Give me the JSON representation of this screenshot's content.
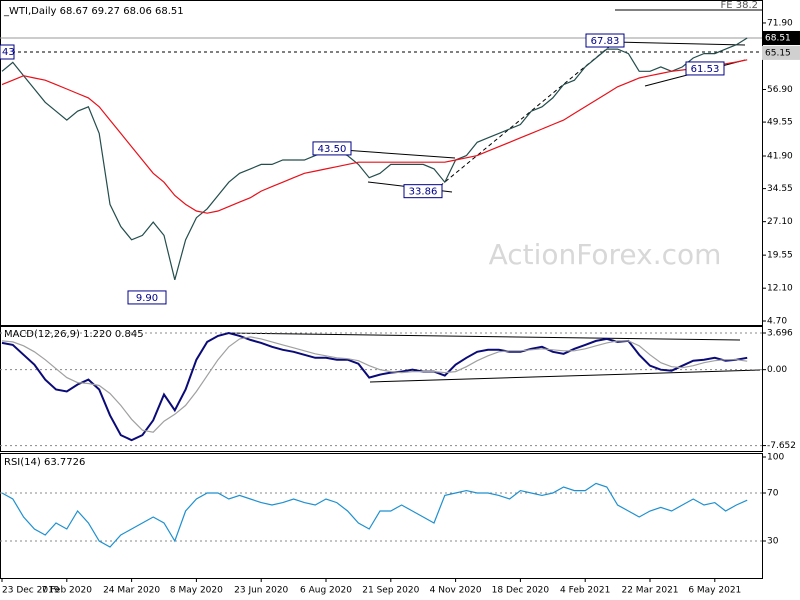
{
  "chart_data": [
    {
      "type": "line",
      "title": "_WTI,Daily  68.67 69.27 68.06 68.51",
      "watermark": "ActionForex.com",
      "ylim": [
        3.8,
        74.37
      ],
      "yticks": [
        {
          "value": 71.9,
          "label": "71.90"
        },
        {
          "value": 56.9,
          "label": "56.90"
        },
        49.55,
        {
          "value": 41.9,
          "label": "41.90"
        },
        34.55,
        {
          "value": 27.1,
          "label": "27.10"
        },
        19.55,
        {
          "value": 12.1,
          "label": "12.10"
        },
        {
          "value": 4.7,
          "label": "4.70"
        }
      ],
      "grid": false,
      "series": [
        {
          "color": "#244d4d",
          "values": [
            61,
            63,
            60,
            57,
            54,
            52,
            50,
            52,
            53,
            47,
            31,
            26,
            23,
            24,
            27,
            24,
            14,
            23,
            28,
            30,
            33,
            36,
            38,
            39,
            40,
            40,
            41,
            41,
            41,
            42,
            43,
            43,
            42,
            40,
            37,
            38,
            40,
            40,
            40,
            40,
            39,
            36,
            41,
            42,
            45,
            46,
            47,
            48,
            49,
            52,
            53,
            55,
            58,
            59,
            62,
            64,
            66,
            66,
            65,
            61,
            61,
            62,
            61,
            62,
            64,
            65,
            65,
            66,
            67,
            68.5
          ]
        },
        {
          "color": "#e8101a",
          "values": [
            58,
            59,
            60,
            59.5,
            59,
            58,
            57,
            56,
            55,
            53,
            50,
            47,
            44,
            41,
            38,
            36,
            33,
            31,
            29.5,
            29,
            29.5,
            30.5,
            31.5,
            32.5,
            34,
            35,
            36,
            37,
            38,
            38.5,
            39,
            39.5,
            40,
            40.5,
            40.5,
            40.5,
            40.5,
            40.5,
            40.5,
            40.5,
            40.5,
            40.5,
            41,
            41.5,
            42,
            43,
            44,
            45,
            46,
            47,
            48,
            49,
            50,
            51.5,
            53,
            54.5,
            56,
            57.5,
            58.5,
            59.5,
            60,
            60.5,
            61,
            61.3,
            61.6,
            62,
            62.3,
            62.7,
            63.1,
            63.6
          ]
        }
      ],
      "annotations": [
        67.83,
        {
          "value": 43.5,
          "label": "43.50"
        },
        33.86,
        {
          "value": 9.9,
          "label": "9.90"
        },
        61.53
      ],
      "last_price": 68.51,
      "level": 65.15,
      "left_label": "43",
      "fe_label": "FE 38.2"
    },
    {
      "type": "line",
      "title": "MACD(12,26,9) 1.220 0.845",
      "ylim": [
        -8.3,
        4.3
      ],
      "yticks": [
        3.696,
        {
          "value": 0,
          "label": "0.00"
        },
        -7.652
      ],
      "grid": true,
      "series": [
        {
          "color": "#0a0a78",
          "values": [
            2.7,
            2.5,
            1.5,
            0.5,
            -1.0,
            -2.0,
            -2.2,
            -1.5,
            -1.0,
            -2.0,
            -4.6,
            -6.6,
            -7.1,
            -6.6,
            -5.1,
            -2.5,
            -4.1,
            -2.0,
            1.0,
            2.8,
            3.4,
            3.7,
            3.4,
            3.0,
            2.7,
            2.3,
            2.0,
            1.8,
            1.5,
            1.2,
            1.2,
            1.0,
            1.0,
            0.6,
            -0.8,
            -0.5,
            -0.3,
            -0.2,
            0,
            -0.2,
            -0.2,
            -0.6,
            0.5,
            1.2,
            1.8,
            2.0,
            2.0,
            1.8,
            1.8,
            2.1,
            2.3,
            1.8,
            1.6,
            2.1,
            2.5,
            2.9,
            3.1,
            2.8,
            2.9,
            1.5,
            0.4,
            0,
            -0.1,
            0.4,
            0.9,
            1.0,
            1.2,
            0.9,
            1.0,
            1.2
          ]
        },
        {
          "color": "#a0a0a0",
          "values": [
            2.9,
            2.8,
            2.4,
            1.8,
            1.0,
            0.1,
            -0.8,
            -1.3,
            -1.4,
            -1.6,
            -2.4,
            -3.6,
            -5.0,
            -6.1,
            -6.3,
            -5.2,
            -4.5,
            -3.6,
            -2.2,
            -0.6,
            1.0,
            2.3,
            3.1,
            3.3,
            3.1,
            2.8,
            2.5,
            2.2,
            1.9,
            1.6,
            1.4,
            1.2,
            1.1,
            0.9,
            0.4,
            0.0,
            -0.2,
            -0.3,
            -0.2,
            -0.2,
            -0.2,
            -0.3,
            -0.2,
            0.3,
            0.9,
            1.4,
            1.8,
            1.9,
            1.9,
            2.0,
            2.1,
            2.0,
            1.9,
            1.9,
            2.1,
            2.4,
            2.7,
            2.9,
            2.9,
            2.4,
            1.5,
            0.7,
            0.3,
            0.2,
            0.4,
            0.7,
            0.9,
            1.0,
            1.0,
            0.85
          ]
        }
      ]
    },
    {
      "type": "line",
      "title": "RSI(14) 63.7726",
      "ylim": [
        0,
        100
      ],
      "yticks": [
        30,
        70,
        100
      ],
      "grid": true,
      "categories": [
        "23 Dec 2019",
        null,
        null,
        null,
        null,
        null,
        "7 Feb 2020",
        null,
        null,
        null,
        null,
        null,
        "24 Mar 2020",
        null,
        null,
        null,
        null,
        null,
        "8 May 2020",
        null,
        null,
        null,
        null,
        null,
        "23 Jun 2020",
        null,
        null,
        null,
        null,
        null,
        "6 Aug 2020",
        null,
        null,
        null,
        null,
        null,
        "21 Sep 2020",
        null,
        null,
        null,
        null,
        null,
        "4 Nov 2020",
        null,
        null,
        null,
        null,
        null,
        "18 Dec 2020",
        null,
        null,
        null,
        null,
        null,
        "4 Feb 2021",
        null,
        null,
        null,
        null,
        null,
        "22 Mar 2021",
        null,
        null,
        null,
        null,
        null,
        "6 May 2021",
        null,
        null,
        null
      ],
      "series": [
        {
          "color": "#1e90d0",
          "values": [
            70,
            65,
            50,
            40,
            35,
            45,
            40,
            55,
            45,
            30,
            25,
            35,
            40,
            45,
            50,
            45,
            30,
            55,
            65,
            70,
            70,
            65,
            68,
            65,
            62,
            60,
            62,
            65,
            62,
            60,
            65,
            62,
            55,
            45,
            40,
            55,
            55,
            60,
            55,
            50,
            45,
            68,
            70,
            72,
            70,
            70,
            68,
            65,
            72,
            70,
            68,
            70,
            75,
            72,
            72,
            78,
            75,
            60,
            55,
            50,
            55,
            58,
            55,
            60,
            65,
            60,
            62,
            55,
            60,
            64
          ]
        }
      ]
    }
  ]
}
